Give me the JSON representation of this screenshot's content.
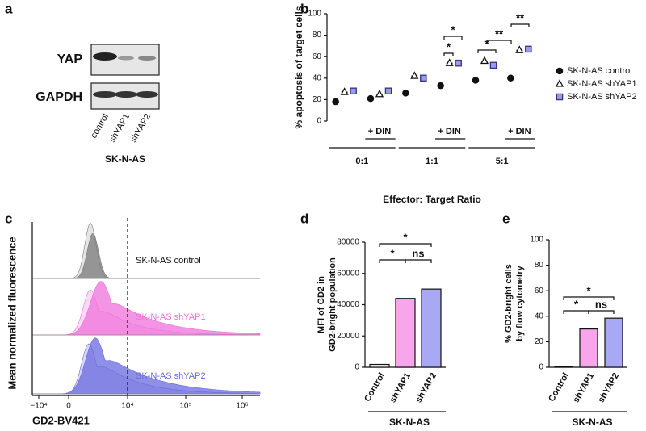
{
  "panels": [
    "a",
    "b",
    "c",
    "d",
    "e"
  ],
  "blot": {
    "rows": [
      "YAP",
      "GAPDH"
    ],
    "lanes": [
      "control",
      "shYAP1",
      "shYAP2"
    ],
    "cell_line": "SK-N-AS"
  },
  "flow": {
    "samples": [
      "SK-N-AS control",
      "SK-N-AS shYAP1",
      "SK-N-AS shYAP2"
    ],
    "xlabel": "GD2-BV421",
    "ylabel": "Mean normalized fluorescence",
    "xticks": [
      "−10⁴",
      "0",
      "10⁴",
      "10⁵",
      "10⁶"
    ]
  },
  "chart_data": [
    {
      "type": "dot",
      "ylabel": "% apoptosis of target cells",
      "xlabel": "Effector: Target Ratio",
      "categories": [
        null,
        "+ DIN",
        null,
        "+ DIN",
        null,
        "+ DIN"
      ],
      "groups": [
        "0:1",
        "1:1",
        "5:1"
      ],
      "series": [
        {
          "name": "SK-N-AS control",
          "color": "#111111",
          "marker": "circle",
          "values": [
            18,
            21,
            26,
            33,
            38,
            40
          ]
        },
        {
          "name": "SK-N-AS shYAP1",
          "color": "#ffffff",
          "marker": "triangle",
          "values": [
            27,
            25,
            42,
            54,
            56,
            66
          ]
        },
        {
          "name": "SK-N-AS shYAP2",
          "color": "#9b9be8",
          "marker": "square",
          "values": [
            28,
            28,
            40,
            54,
            52,
            67
          ]
        }
      ],
      "ylim": [
        0,
        100
      ],
      "yticks": [
        0,
        20,
        40,
        60,
        80,
        100
      ],
      "legend": "right",
      "annotations": [
        "*",
        "*",
        "*",
        "**",
        "**"
      ]
    },
    {
      "type": "bar",
      "ylabel": [
        "MFI of GD2 in",
        "GD2-bright population"
      ],
      "xlabel": "SK-N-AS",
      "categories": [
        "Control",
        "shYAP1",
        "shYAP2"
      ],
      "values": [
        1800,
        44000,
        50000
      ],
      "colors": [
        "#ffffff",
        "#f7a6ec",
        "#a8a8f4"
      ],
      "ylim": [
        0,
        80000
      ],
      "yticks": [
        0,
        20000,
        40000,
        60000,
        80000
      ],
      "annotations": [
        "*",
        "*",
        "ns"
      ]
    },
    {
      "type": "bar",
      "ylabel": [
        "% GD2-bright cells",
        "by flow cytometry"
      ],
      "xlabel": "SK-N-AS",
      "categories": [
        "Control",
        "shYAP1",
        "shYAP2"
      ],
      "values": [
        0.5,
        30,
        38.5
      ],
      "colors": [
        "#ffffff",
        "#f7a6ec",
        "#a8a8f4"
      ],
      "ylim": [
        0,
        100
      ],
      "yticks": [
        0,
        20,
        40,
        60,
        80,
        100
      ],
      "annotations": [
        "*",
        "*",
        "ns"
      ]
    }
  ]
}
